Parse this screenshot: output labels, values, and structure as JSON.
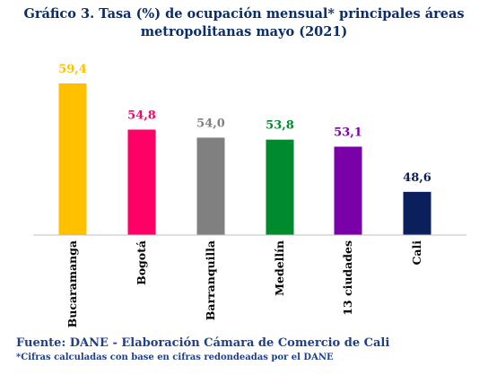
{
  "title_line1": "Gráfico 3. Tasa (%) de ocupación mensual* principales áreas",
  "title_line2": "metropolitanas mayo (2021)",
  "source": "Fuente: DANE - Elaboración Cámara de Comercio de Cali",
  "footnote": "*Cifras calculadas con base en cifras redondeadas por el DANE",
  "chart_data": {
    "type": "bar",
    "title": "Gráfico 3. Tasa (%) de ocupación mensual* principales áreas metropolitanas mayo (2021)",
    "categories": [
      "Bucaramanga",
      "Bogotá",
      "Barranquilla",
      "Medellín",
      "13 ciudades",
      "Cali"
    ],
    "values": [
      59.4,
      54.8,
      54.0,
      53.8,
      53.1,
      48.6
    ],
    "value_labels": [
      "59,4",
      "54,8",
      "54,0",
      "53,8",
      "53,1",
      "48,6"
    ],
    "colors": [
      "#ffc000",
      "#ff0066",
      "#808080",
      "#008a2e",
      "#7a00a8",
      "#0a1f5c"
    ],
    "xlabel": "",
    "ylabel": "",
    "ylim": [
      44.3,
      59.4
    ],
    "grid": false,
    "legend": "none"
  }
}
